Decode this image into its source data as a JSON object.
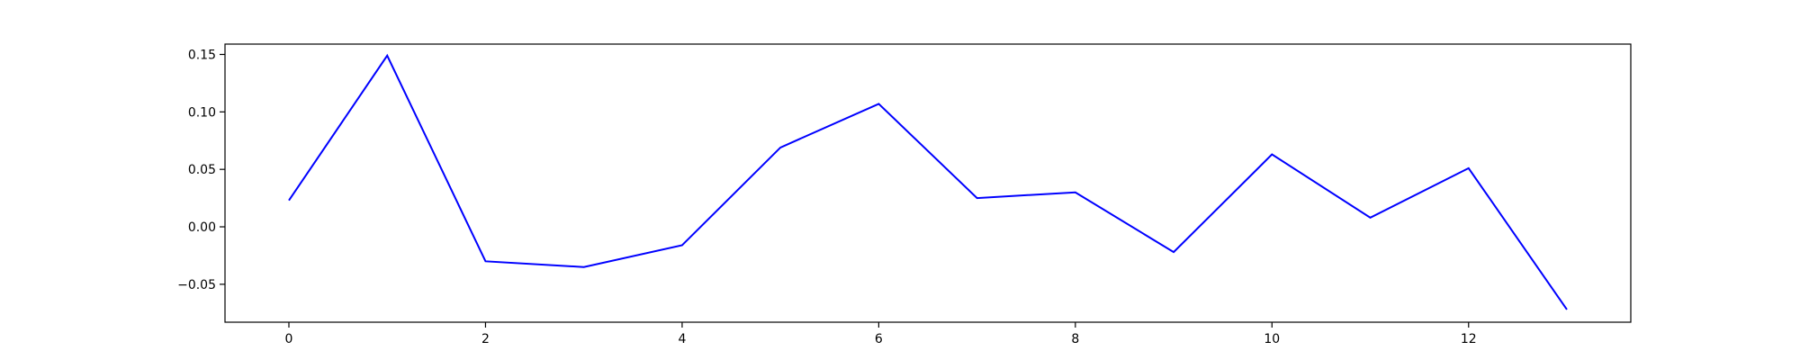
{
  "chart_data": {
    "type": "line",
    "title": "",
    "xlabel": "",
    "ylabel": "",
    "xlim": [
      -0.65,
      13.65
    ],
    "ylim": [
      -0.083,
      0.159
    ],
    "grid": false,
    "legend": "none",
    "x": [
      0,
      1,
      2,
      3,
      4,
      5,
      6,
      7,
      8,
      9,
      10,
      11,
      12,
      13
    ],
    "series": [
      {
        "color": "#0000ff",
        "values": [
          0.023,
          0.149,
          -0.03,
          -0.035,
          -0.016,
          0.069,
          0.107,
          0.025,
          0.03,
          -0.022,
          0.063,
          0.008,
          0.051,
          -0.072
        ]
      }
    ],
    "x_ticks": [
      0,
      2,
      4,
      6,
      8,
      10,
      12
    ],
    "x_tick_labels": [
      "0",
      "2",
      "4",
      "6",
      "8",
      "10",
      "12"
    ],
    "y_ticks": [
      -0.05,
      0.0,
      0.05,
      0.1,
      0.15
    ],
    "y_tick_labels": [
      "−0.05",
      "0.00",
      "0.05",
      "0.10",
      "0.15"
    ]
  }
}
